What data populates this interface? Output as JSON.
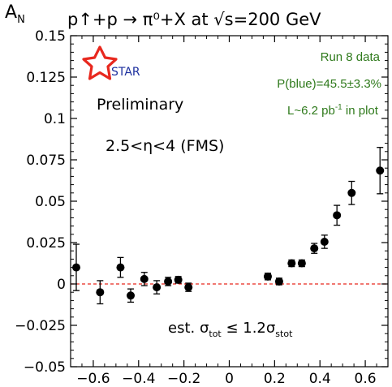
{
  "chart_data": {
    "type": "scatter",
    "title": "p↑+p → π⁰+X at √s=200 GeV",
    "ylabel": "A",
    "ylabel_sub": "N",
    "xlabel": "",
    "xlim": [
      -0.7,
      0.7
    ],
    "ylim": [
      -0.05,
      0.15
    ],
    "yticks": [
      {
        "v": -0.05,
        "label": "−0.05"
      },
      {
        "v": -0.025,
        "label": "−0.025"
      },
      {
        "v": 0,
        "label": "0"
      },
      {
        "v": 0.025,
        "label": "0.025"
      },
      {
        "v": 0.05,
        "label": "0.05"
      },
      {
        "v": 0.075,
        "label": "0.075"
      },
      {
        "v": 0.1,
        "label": "0.1"
      },
      {
        "v": 0.125,
        "label": "0.125"
      },
      {
        "v": 0.15,
        "label": "0.15"
      }
    ],
    "xticks": [
      {
        "v": -0.6,
        "label": "−0.6"
      },
      {
        "v": -0.4,
        "label": "−0.4"
      },
      {
        "v": -0.2,
        "label": "−0.2"
      },
      {
        "v": 0,
        "label": "0"
      },
      {
        "v": 0.2,
        "label": "0.2"
      },
      {
        "v": 0.4,
        "label": "0.4"
      },
      {
        "v": 0.6,
        "label": "0.6"
      }
    ],
    "zero_line": {
      "y": 0,
      "color": "#e8281e",
      "style": "dashed"
    },
    "marker_color": "#000000",
    "series": [
      {
        "points": [
          {
            "x": -0.675,
            "y": 0.01,
            "err": 0.014
          },
          {
            "x": -0.57,
            "y": -0.005,
            "err": 0.007
          },
          {
            "x": -0.48,
            "y": 0.01,
            "err": 0.006
          },
          {
            "x": -0.435,
            "y": -0.007,
            "err": 0.004
          },
          {
            "x": -0.375,
            "y": 0.003,
            "err": 0.004
          },
          {
            "x": -0.32,
            "y": -0.002,
            "err": 0.004
          },
          {
            "x": -0.27,
            "y": 0.0015,
            "err": 0.0025
          },
          {
            "x": -0.225,
            "y": 0.0025,
            "err": 0.002
          },
          {
            "x": -0.18,
            "y": -0.002,
            "err": 0.0025
          },
          {
            "x": 0.17,
            "y": 0.0045,
            "err": 0.002
          },
          {
            "x": 0.22,
            "y": 0.0015,
            "err": 0.002
          },
          {
            "x": 0.275,
            "y": 0.0125,
            "err": 0.002
          },
          {
            "x": 0.32,
            "y": 0.0125,
            "err": 0.002
          },
          {
            "x": 0.375,
            "y": 0.0215,
            "err": 0.003
          },
          {
            "x": 0.42,
            "y": 0.0255,
            "err": 0.004
          },
          {
            "x": 0.475,
            "y": 0.0415,
            "err": 0.006
          },
          {
            "x": 0.54,
            "y": 0.055,
            "err": 0.007
          },
          {
            "x": 0.665,
            "y": 0.0685,
            "err": 0.014
          }
        ]
      }
    ],
    "annotations": {
      "logo_text": "STAR",
      "preliminary": "Preliminary",
      "eta_range": "2.5<η<4 (FMS)",
      "run": "Run 8 data",
      "polarization": "P(blue)=45.5±3.3%",
      "lumi_pre": "L~6.2 pb",
      "lumi_exp": "-1",
      "lumi_post": " in plot",
      "sigma_pre": "est. σ",
      "sigma_sub1": "tot",
      "sigma_mid": " ≤ 1.2σ",
      "sigma_sub2": "stot"
    },
    "colors": {
      "annotation_green": "#2f7a1c",
      "star_red": "#e8281e",
      "star_blue": "#1c2f9e"
    }
  }
}
